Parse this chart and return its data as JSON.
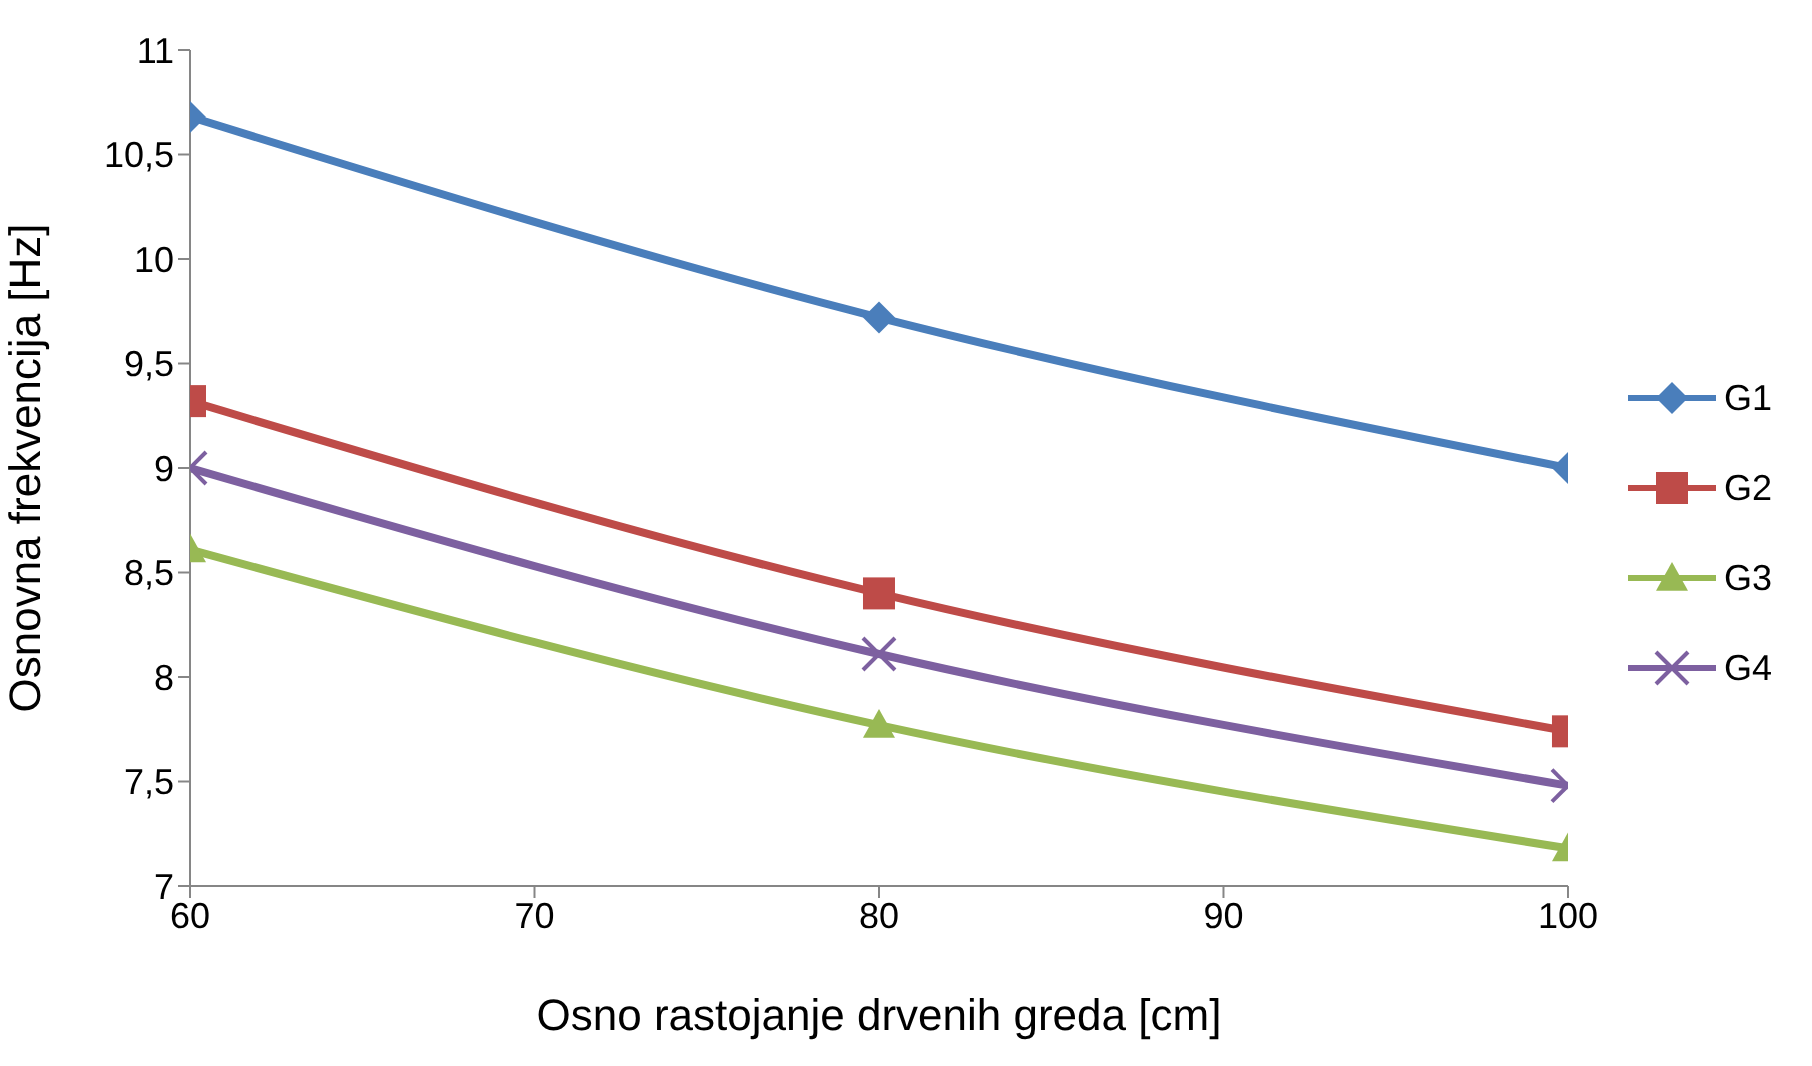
{
  "chart_data": {
    "type": "line",
    "xlabel": "Osno rastojanje drvenih greda [cm]",
    "ylabel": "Osnovna frekvencija [Hz]",
    "x": [
      60,
      80,
      100
    ],
    "xlim": [
      60,
      100
    ],
    "xticks": [
      60,
      70,
      80,
      90,
      100
    ],
    "ylim": [
      7,
      11
    ],
    "yticks": [
      7,
      {
        "value": 7.5,
        "label": "7,5"
      },
      8,
      {
        "value": 8.5,
        "label": "8,5"
      },
      9,
      {
        "value": 9.5,
        "label": "9,5"
      },
      10,
      {
        "value": 10.5,
        "label": "10,5"
      },
      11
    ],
    "grid": false,
    "legend": "right",
    "series": [
      {
        "name": "G1",
        "color": "#4a7ebb",
        "marker": "diamond",
        "values": [
          10.68,
          9.72,
          9.0
        ]
      },
      {
        "name": "G2",
        "color": "#be4b48",
        "marker": "square",
        "values": [
          9.32,
          8.4,
          7.74
        ]
      },
      {
        "name": "G3",
        "color": "#98b954",
        "marker": "triangle",
        "values": [
          8.61,
          7.77,
          7.18
        ]
      },
      {
        "name": "G4",
        "color": "#7d60a0",
        "marker": "cross",
        "values": [
          9.0,
          8.11,
          7.48
        ]
      }
    ]
  }
}
